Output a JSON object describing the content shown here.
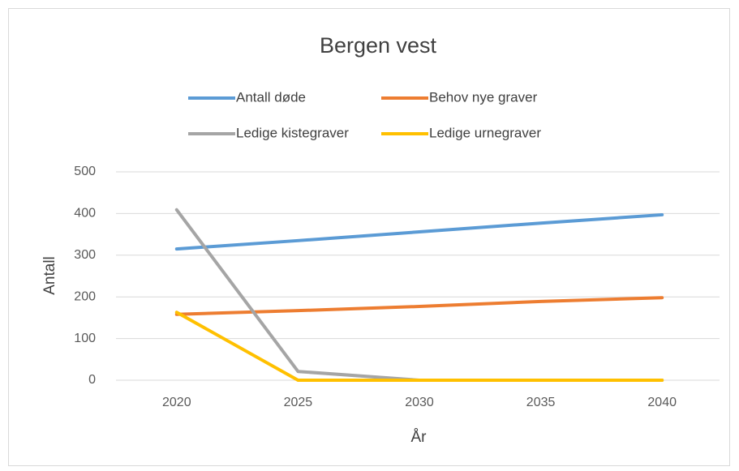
{
  "chart_data": {
    "type": "line",
    "title": "Bergen vest",
    "x_label": "År",
    "y_label": "Antall",
    "categories": [
      2020,
      2025,
      2030,
      2035,
      2040
    ],
    "series": [
      {
        "name": "Antall døde",
        "color": "#5b9bd5",
        "values": [
          315,
          335,
          356,
          377,
          397
        ]
      },
      {
        "name": "Behov nye graver",
        "color": "#ed7d31",
        "values": [
          158,
          167,
          177,
          189,
          198
        ]
      },
      {
        "name": "Ledige kistegraver",
        "color": "#a5a5a5",
        "values": [
          409,
          21,
          0,
          0,
          0
        ]
      },
      {
        "name": "Ledige urnegraver",
        "color": "#ffc000",
        "values": [
          163,
          0,
          0,
          0,
          0
        ]
      }
    ],
    "ylim": [
      0,
      500
    ],
    "yticks": [
      0,
      100,
      200,
      300,
      400,
      500
    ],
    "grid": true
  }
}
